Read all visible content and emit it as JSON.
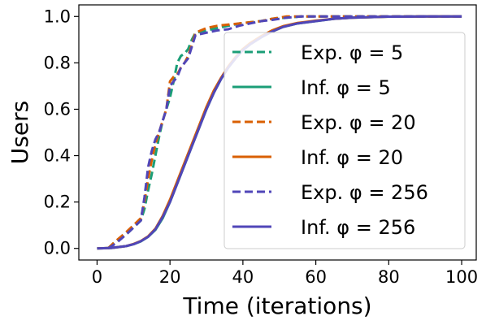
{
  "chart_data": {
    "type": "line",
    "xlabel": "Time (iterations)",
    "ylabel": "Users",
    "xlim": [
      -5,
      104
    ],
    "ylim": [
      -0.05,
      1.05
    ],
    "xticks": [
      0,
      20,
      40,
      60,
      80,
      100
    ],
    "yticks": [
      0.0,
      0.2,
      0.4,
      0.6,
      0.8,
      1.0
    ],
    "xtick_labels": [
      "0",
      "20",
      "40",
      "60",
      "80",
      "100"
    ],
    "ytick_labels": [
      "0.0",
      "0.2",
      "0.4",
      "0.6",
      "0.8",
      "1.0"
    ],
    "grid": false,
    "legend_position": "right",
    "series": [
      {
        "name": "Exp. φ = 5",
        "color": "#1b9e77",
        "style": "dashed",
        "x": [
          3,
          5,
          8,
          10,
          12,
          13,
          14,
          15,
          16,
          17,
          18,
          19,
          20,
          21,
          22,
          23,
          24,
          25,
          26,
          27,
          30,
          33,
          36,
          39,
          42,
          45,
          48,
          52,
          56,
          60,
          65,
          70,
          75,
          80,
          85,
          90,
          95,
          100
        ],
        "y": [
          0.0,
          0.03,
          0.06,
          0.09,
          0.12,
          0.17,
          0.25,
          0.32,
          0.4,
          0.48,
          0.55,
          0.6,
          0.65,
          0.72,
          0.8,
          0.83,
          0.84,
          0.86,
          0.9,
          0.93,
          0.94,
          0.95,
          0.96,
          0.97,
          0.975,
          0.98,
          0.99,
          0.995,
          1.0,
          1.0,
          1.0,
          1.0,
          1.0,
          1.0,
          1.0,
          1.0,
          1.0,
          1.0
        ]
      },
      {
        "name": "Inf. φ = 5",
        "color": "#1b9e77",
        "style": "solid",
        "x": [
          0,
          4,
          8,
          10,
          12,
          14,
          16,
          18,
          20,
          22,
          24,
          26,
          28,
          30,
          32,
          34,
          36,
          38,
          40,
          42,
          45,
          48,
          51,
          55,
          60,
          65,
          70,
          80,
          90,
          100
        ],
        "y": [
          0.0,
          0.002,
          0.01,
          0.018,
          0.03,
          0.05,
          0.08,
          0.13,
          0.2,
          0.28,
          0.36,
          0.44,
          0.52,
          0.6,
          0.67,
          0.73,
          0.78,
          0.82,
          0.855,
          0.88,
          0.91,
          0.935,
          0.955,
          0.97,
          0.98,
          0.99,
          0.995,
          0.999,
          1.0,
          1.0
        ]
      },
      {
        "name": "Exp. φ = 20",
        "color": "#d95f02",
        "style": "dashed",
        "x": [
          3,
          5,
          8,
          10,
          12,
          13,
          14,
          15,
          16,
          17,
          18,
          19,
          20,
          21,
          22,
          23,
          24,
          25,
          26,
          27,
          30,
          33,
          36,
          39,
          42,
          45,
          48,
          52,
          56,
          60,
          65,
          70,
          75,
          80,
          85,
          90,
          95,
          100
        ],
        "y": [
          0.0,
          0.03,
          0.07,
          0.1,
          0.13,
          0.2,
          0.3,
          0.38,
          0.45,
          0.5,
          0.55,
          0.6,
          0.72,
          0.74,
          0.75,
          0.78,
          0.8,
          0.83,
          0.88,
          0.93,
          0.95,
          0.96,
          0.965,
          0.97,
          0.975,
          0.98,
          0.99,
          1.0,
          1.0,
          1.0,
          1.0,
          1.0,
          1.0,
          1.0,
          1.0,
          1.0,
          1.0,
          1.0
        ]
      },
      {
        "name": "Inf. φ = 20",
        "color": "#d95f02",
        "style": "solid",
        "x": [
          0,
          4,
          8,
          10,
          12,
          14,
          16,
          18,
          20,
          22,
          24,
          26,
          28,
          30,
          32,
          34,
          36,
          38,
          40,
          42,
          45,
          48,
          51,
          55,
          60,
          65,
          70,
          80,
          90,
          100
        ],
        "y": [
          0.0,
          0.002,
          0.01,
          0.019,
          0.032,
          0.052,
          0.085,
          0.14,
          0.21,
          0.29,
          0.37,
          0.45,
          0.53,
          0.61,
          0.68,
          0.735,
          0.785,
          0.825,
          0.86,
          0.885,
          0.915,
          0.94,
          0.958,
          0.972,
          0.982,
          0.99,
          0.995,
          0.999,
          1.0,
          1.0
        ]
      },
      {
        "name": "Exp. φ = 256",
        "color": "#5046b8",
        "style": "dashed",
        "x": [
          3,
          5,
          8,
          10,
          12,
          13,
          14,
          15,
          16,
          17,
          18,
          19,
          20,
          21,
          22,
          23,
          24,
          25,
          26,
          27,
          30,
          33,
          36,
          39,
          42,
          45,
          48,
          52,
          56,
          60,
          65,
          70,
          75,
          80,
          85,
          90,
          95,
          100
        ],
        "y": [
          0.0,
          0.02,
          0.06,
          0.09,
          0.12,
          0.22,
          0.35,
          0.42,
          0.47,
          0.5,
          0.55,
          0.6,
          0.7,
          0.72,
          0.74,
          0.78,
          0.8,
          0.82,
          0.87,
          0.92,
          0.93,
          0.94,
          0.945,
          0.96,
          0.97,
          0.98,
          0.985,
          0.995,
          1.0,
          1.0,
          1.0,
          1.0,
          1.0,
          1.0,
          1.0,
          1.0,
          1.0,
          1.0
        ]
      },
      {
        "name": "Inf. φ = 256",
        "color": "#5046b8",
        "style": "solid",
        "x": [
          0,
          4,
          8,
          10,
          12,
          14,
          16,
          18,
          20,
          22,
          24,
          26,
          28,
          30,
          32,
          34,
          36,
          38,
          40,
          42,
          45,
          48,
          51,
          55,
          60,
          65,
          70,
          80,
          90,
          100
        ],
        "y": [
          0.0,
          0.002,
          0.01,
          0.018,
          0.031,
          0.05,
          0.082,
          0.135,
          0.2,
          0.28,
          0.36,
          0.44,
          0.52,
          0.6,
          0.67,
          0.73,
          0.78,
          0.82,
          0.855,
          0.88,
          0.91,
          0.935,
          0.955,
          0.97,
          0.98,
          0.99,
          0.995,
          0.999,
          1.0,
          1.0
        ]
      }
    ]
  }
}
